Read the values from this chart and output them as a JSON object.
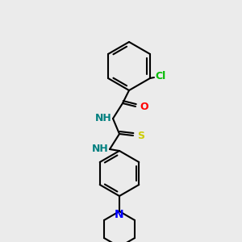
{
  "background_color": "#ebebeb",
  "bond_color": "#000000",
  "bond_width": 1.5,
  "atom_colors": {
    "N": "#008080",
    "O": "#ff0000",
    "S": "#cccc00",
    "Cl": "#00bb00",
    "H_label": "#008080"
  },
  "font_size": 9,
  "title": ""
}
